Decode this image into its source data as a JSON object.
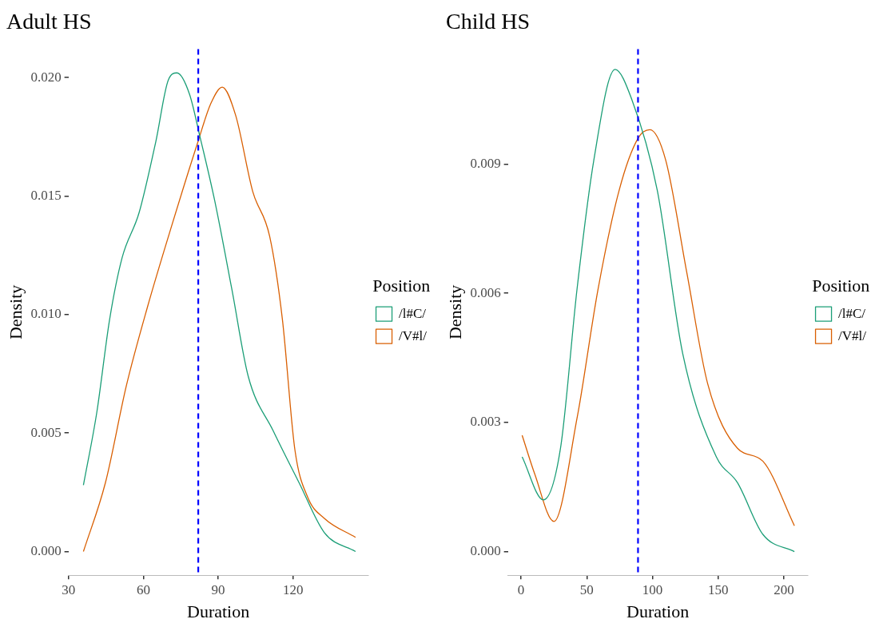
{
  "chart_data": [
    {
      "type": "line",
      "title": "Adult HS",
      "xlabel": "Duration",
      "ylabel": "Density",
      "legend_title": "Position",
      "legend": "right",
      "grid": false,
      "marker": "none",
      "xlim": [
        30,
        150
      ],
      "xticks": [
        30,
        60,
        90,
        120
      ],
      "ylim": [
        -0.001,
        0.0212
      ],
      "yticks": [
        {
          "value": 0,
          "label": "0.000"
        },
        {
          "value": 0.005,
          "label": "0.005"
        },
        {
          "value": 0.01,
          "label": "0.010"
        },
        {
          "value": 0.015,
          "label": "0.015"
        },
        {
          "value": 0.02,
          "label": "0.020"
        }
      ],
      "ref_lines": [
        {
          "axis": "x",
          "value": 82,
          "color": "#0000ff",
          "line_style": "dashed"
        }
      ],
      "series": [
        {
          "name": "/l#C/",
          "color": "#1b9e77",
          "x": [
            36,
            41.4,
            46.5,
            51.5,
            58.3,
            65,
            70,
            73.5,
            78.5,
            82.7,
            88.6,
            95.4,
            102,
            112,
            122.4,
            132.5,
            145
          ],
          "values": [
            0.0028,
            0.0059,
            0.0098,
            0.0124,
            0.0143,
            0.0173,
            0.0199,
            0.0202,
            0.0193,
            0.0175,
            0.0148,
            0.0111,
            0.0074,
            0.0051,
            0.0029,
            0.0008,
            0
          ]
        },
        {
          "name": "/V#l/",
          "color": "#d95f02",
          "x": [
            36,
            44.8,
            53.2,
            61.6,
            71.8,
            81.9,
            87,
            91.6,
            97,
            103.8,
            110.6,
            115.7,
            120.7,
            125.8,
            132.5,
            145
          ],
          "values": [
            0,
            0.0029,
            0.007,
            0.0103,
            0.0139,
            0.0173,
            0.0189,
            0.0196,
            0.0184,
            0.0152,
            0.0133,
            0.0098,
            0.0043,
            0.0023,
            0.0014,
            0.0006
          ]
        }
      ]
    },
    {
      "type": "line",
      "title": "Child HS",
      "xlabel": "Duration",
      "ylabel": "Density",
      "legend_title": "Position",
      "legend": "right",
      "grid": false,
      "marker": "none",
      "xlim": [
        -10,
        218
      ],
      "xticks": [
        0,
        50,
        100,
        150,
        200
      ],
      "ylim": [
        -0.00055,
        0.01167
      ],
      "yticks": [
        {
          "value": 0,
          "label": "0.000"
        },
        {
          "value": 0.003,
          "label": "0.003"
        },
        {
          "value": 0.006,
          "label": "0.006"
        },
        {
          "value": 0.009,
          "label": "0.009"
        }
      ],
      "ref_lines": [
        {
          "axis": "x",
          "value": 89,
          "color": "#0000ff",
          "line_style": "dashed"
        }
      ],
      "series": [
        {
          "name": "/l#C/",
          "color": "#1b9e77",
          "x": [
            0.8,
            17,
            30,
            42.6,
            55.4,
            71.5,
            84.3,
            103.6,
            123,
            148.6,
            164.7,
            184,
            208
          ],
          "values": [
            0.0022,
            0.0012,
            0.0024,
            0.0061,
            0.0091,
            0.0112,
            0.0105,
            0.0084,
            0.0046,
            0.0022,
            0.0016,
            0.0004,
            0
          ]
        },
        {
          "name": "/V#l/",
          "color": "#d95f02",
          "x": [
            0.8,
            10.4,
            25,
            42.6,
            58.6,
            74.7,
            89,
            98,
            110,
            126,
            142,
            164.7,
            184,
            208
          ],
          "values": [
            0.0027,
            0.0018,
            0.0007,
            0.0031,
            0.0061,
            0.0084,
            0.0096,
            0.0098,
            0.0091,
            0.0065,
            0.0039,
            0.0024,
            0.0021,
            0.0006
          ]
        }
      ]
    }
  ]
}
